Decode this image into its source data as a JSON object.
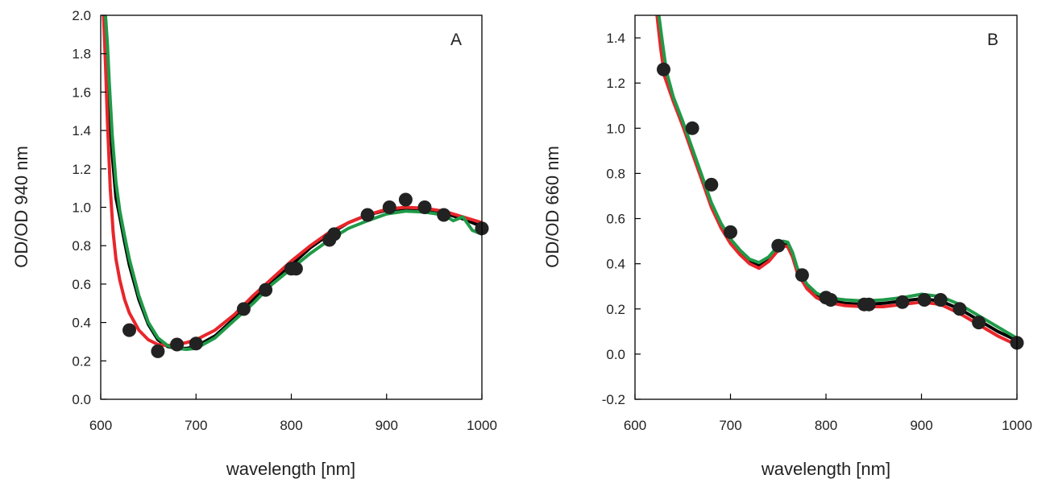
{
  "chart_data": [
    {
      "type": "line",
      "panel_label": "A",
      "xlabel": "wavelength [nm]",
      "ylabel": "OD/OD 940 nm",
      "xlim": [
        600,
        1000
      ],
      "ylim": [
        0.0,
        2.0
      ],
      "xticks": [
        600,
        700,
        800,
        900,
        1000
      ],
      "xtick_labels": [
        "600",
        "700",
        "800",
        "900",
        "1000"
      ],
      "yticks": [
        0.0,
        0.2,
        0.4,
        0.6,
        0.8,
        1.0,
        1.2,
        1.4,
        1.6,
        1.8,
        2.0
      ],
      "ytick_labels": [
        "0.0",
        "0.2",
        "0.4",
        "0.6",
        "0.8",
        "1.0",
        "1.2",
        "1.4",
        "1.6",
        "1.8",
        "2.0"
      ],
      "grid": false,
      "series": [
        {
          "color": "#000000",
          "x": [
            604,
            606,
            608,
            612,
            616,
            620,
            625,
            630,
            640,
            650,
            660,
            670,
            680,
            690,
            700,
            720,
            740,
            760,
            780,
            800,
            820,
            840,
            860,
            880,
            900,
            920,
            940,
            960,
            980,
            1000
          ],
          "y": [
            2.0,
            1.82,
            1.6,
            1.28,
            1.05,
            0.95,
            0.82,
            0.7,
            0.52,
            0.39,
            0.31,
            0.275,
            0.265,
            0.265,
            0.275,
            0.33,
            0.42,
            0.52,
            0.62,
            0.7,
            0.79,
            0.86,
            0.92,
            0.96,
            0.985,
            0.995,
            0.99,
            0.97,
            0.94,
            0.9
          ]
        },
        {
          "color": "#e8262b",
          "x": [
            603,
            605,
            607,
            610,
            613,
            616,
            620,
            625,
            630,
            640,
            650,
            660,
            670,
            680,
            690,
            700,
            720,
            740,
            760,
            780,
            800,
            820,
            840,
            860,
            880,
            900,
            920,
            940,
            960,
            980,
            1000
          ],
          "y": [
            2.0,
            1.75,
            1.45,
            1.1,
            0.87,
            0.73,
            0.62,
            0.52,
            0.45,
            0.36,
            0.31,
            0.285,
            0.28,
            0.285,
            0.295,
            0.31,
            0.36,
            0.44,
            0.54,
            0.63,
            0.72,
            0.8,
            0.87,
            0.92,
            0.96,
            0.99,
            1.0,
            0.995,
            0.98,
            0.95,
            0.92
          ]
        },
        {
          "color": "#1f9a48",
          "x": [
            605,
            607,
            609,
            612,
            616,
            620,
            625,
            630,
            640,
            650,
            660,
            670,
            680,
            690,
            700,
            720,
            740,
            760,
            780,
            800,
            820,
            840,
            860,
            880,
            900,
            920,
            940,
            960,
            970,
            980,
            990,
            1000
          ],
          "y": [
            2.0,
            1.85,
            1.65,
            1.38,
            1.13,
            0.98,
            0.85,
            0.73,
            0.54,
            0.4,
            0.32,
            0.28,
            0.265,
            0.26,
            0.265,
            0.32,
            0.41,
            0.5,
            0.6,
            0.68,
            0.76,
            0.83,
            0.89,
            0.93,
            0.965,
            0.98,
            0.975,
            0.96,
            0.93,
            0.95,
            0.88,
            0.86
          ]
        }
      ],
      "points": {
        "color": "#222222",
        "x": [
          630,
          660,
          680,
          700,
          750,
          773,
          800,
          805,
          840,
          845,
          880,
          903,
          920,
          940,
          960,
          1000
        ],
        "y": [
          0.36,
          0.25,
          0.285,
          0.29,
          0.47,
          0.57,
          0.68,
          0.68,
          0.83,
          0.86,
          0.96,
          1.0,
          1.04,
          1.0,
          0.96,
          0.89
        ]
      }
    },
    {
      "type": "line",
      "panel_label": "B",
      "xlabel": "wavelength [nm]",
      "ylabel": "OD/OD 660 nm",
      "xlim": [
        600,
        1000
      ],
      "ylim": [
        -0.2,
        1.5
      ],
      "xticks": [
        600,
        700,
        800,
        900,
        1000
      ],
      "xtick_labels": [
        "600",
        "700",
        "800",
        "900",
        "1000"
      ],
      "yticks": [
        -0.2,
        0.0,
        0.2,
        0.4,
        0.6,
        0.8,
        1.0,
        1.2,
        1.4
      ],
      "ytick_labels": [
        "-0.2",
        "0.0",
        "0.2",
        "0.4",
        "0.6",
        "0.8",
        "1.0",
        "1.2",
        "1.4"
      ],
      "grid": false,
      "series": [
        {
          "color": "#000000",
          "x": [
            624,
            628,
            632,
            640,
            650,
            660,
            670,
            680,
            690,
            700,
            710,
            720,
            730,
            740,
            750,
            755,
            760,
            765,
            770,
            780,
            790,
            800,
            820,
            840,
            860,
            880,
            900,
            920,
            940,
            960,
            980,
            1000
          ],
          "y": [
            1.5,
            1.36,
            1.24,
            1.13,
            1.02,
            0.9,
            0.78,
            0.66,
            0.57,
            0.5,
            0.45,
            0.41,
            0.395,
            0.42,
            0.47,
            0.49,
            0.485,
            0.44,
            0.37,
            0.3,
            0.26,
            0.24,
            0.225,
            0.22,
            0.225,
            0.235,
            0.245,
            0.235,
            0.2,
            0.15,
            0.1,
            0.06
          ]
        },
        {
          "color": "#e8262b",
          "x": [
            623,
            627,
            631,
            640,
            650,
            660,
            670,
            680,
            690,
            700,
            710,
            720,
            730,
            740,
            750,
            755,
            760,
            765,
            770,
            780,
            790,
            800,
            820,
            840,
            860,
            880,
            900,
            920,
            940,
            960,
            980,
            1000
          ],
          "y": [
            1.5,
            1.35,
            1.23,
            1.12,
            1.01,
            0.89,
            0.77,
            0.65,
            0.56,
            0.49,
            0.44,
            0.4,
            0.38,
            0.41,
            0.46,
            0.48,
            0.475,
            0.43,
            0.36,
            0.29,
            0.25,
            0.23,
            0.215,
            0.21,
            0.21,
            0.22,
            0.23,
            0.22,
            0.18,
            0.13,
            0.08,
            0.04
          ]
        },
        {
          "color": "#1f9a48",
          "x": [
            625,
            629,
            633,
            640,
            650,
            660,
            670,
            680,
            690,
            700,
            710,
            720,
            730,
            740,
            750,
            755,
            760,
            765,
            770,
            780,
            790,
            800,
            820,
            840,
            860,
            880,
            900,
            920,
            940,
            960,
            980,
            1000
          ],
          "y": [
            1.5,
            1.37,
            1.25,
            1.14,
            1.03,
            0.91,
            0.79,
            0.67,
            0.58,
            0.51,
            0.46,
            0.42,
            0.405,
            0.43,
            0.48,
            0.5,
            0.495,
            0.45,
            0.38,
            0.31,
            0.27,
            0.25,
            0.24,
            0.235,
            0.24,
            0.25,
            0.265,
            0.255,
            0.22,
            0.17,
            0.12,
            0.07
          ]
        }
      ],
      "points": {
        "color": "#222222",
        "x": [
          630,
          660,
          680,
          700,
          750,
          775,
          800,
          805,
          840,
          845,
          880,
          903,
          920,
          940,
          960,
          1000
        ],
        "y": [
          1.26,
          1.0,
          0.75,
          0.54,
          0.48,
          0.35,
          0.25,
          0.24,
          0.22,
          0.22,
          0.23,
          0.24,
          0.24,
          0.2,
          0.14,
          0.05
        ]
      }
    }
  ]
}
